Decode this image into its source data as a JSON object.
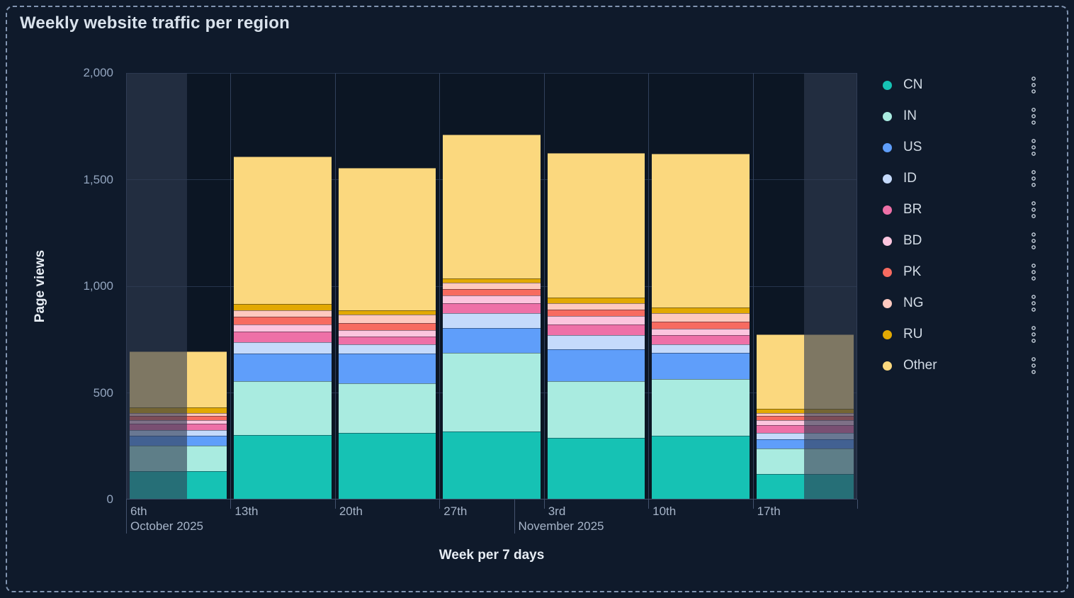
{
  "title": "Weekly website traffic per region",
  "y_axis_title": "Page views",
  "x_axis_title": "Week per 7 days",
  "legend": {
    "position": "right",
    "options_icon": "kebab-vertical-dots-icon"
  },
  "chart_data": {
    "type": "bar",
    "stacked": true,
    "title": "Weekly website traffic per region",
    "xlabel": "Week per 7 days",
    "ylabel": "Page views",
    "categories": [
      "6th",
      "13th",
      "20th",
      "27th",
      "3rd",
      "10th",
      "17th"
    ],
    "month_markers": [
      {
        "label": "October 2025",
        "week_pos": 0
      },
      {
        "label": "November 2025",
        "week_pos": 3.714
      }
    ],
    "series": [
      {
        "name": "CN",
        "color": "#16c2b4",
        "values": [
          130,
          300,
          310,
          315,
          285,
          295,
          115
        ]
      },
      {
        "name": "IN",
        "color": "#a9ebe0",
        "values": [
          118,
          250,
          230,
          370,
          265,
          265,
          120
        ]
      },
      {
        "name": "US",
        "color": "#5f9efa",
        "values": [
          48,
          130,
          140,
          115,
          150,
          125,
          45
        ]
      },
      {
        "name": "ID",
        "color": "#c5dafb",
        "values": [
          25,
          53,
          45,
          70,
          68,
          40,
          28
        ]
      },
      {
        "name": "BR",
        "color": "#ee70a7",
        "values": [
          32,
          50,
          35,
          47,
          50,
          42,
          38
        ]
      },
      {
        "name": "BD",
        "color": "#fcc5de",
        "values": [
          15,
          36,
          30,
          38,
          40,
          32,
          22
        ]
      },
      {
        "name": "PK",
        "color": "#f76b60",
        "values": [
          20,
          35,
          33,
          27,
          28,
          31,
          22
        ]
      },
      {
        "name": "NG",
        "color": "#fec9bf",
        "values": [
          15,
          31,
          40,
          33,
          31,
          39,
          11
        ]
      },
      {
        "name": "RU",
        "color": "#e2a903",
        "values": [
          25,
          30,
          20,
          19,
          28,
          28,
          22
        ]
      },
      {
        "name": "Other",
        "color": "#fbd87e",
        "values": [
          262,
          690,
          670,
          675,
          675,
          720,
          347
        ]
      }
    ],
    "totals": [
      690,
      1605,
      1553,
      1709,
      1620,
      1617,
      770
    ],
    "ylim": [
      0,
      2000
    ],
    "yticks": [
      {
        "label": "0",
        "value": 0
      },
      {
        "label": "500",
        "value": 500
      },
      {
        "label": "1,000",
        "value": 1000
      },
      {
        "label": "1,500",
        "value": 1500
      },
      {
        "label": "2,000",
        "value": 2000
      }
    ],
    "grid": true,
    "legend_position": "right",
    "dimmed_regions": [
      {
        "start_frac": 0.0,
        "end_frac": 0.0833
      },
      {
        "start_frac": 0.9274,
        "end_frac": 1.0
      }
    ]
  }
}
